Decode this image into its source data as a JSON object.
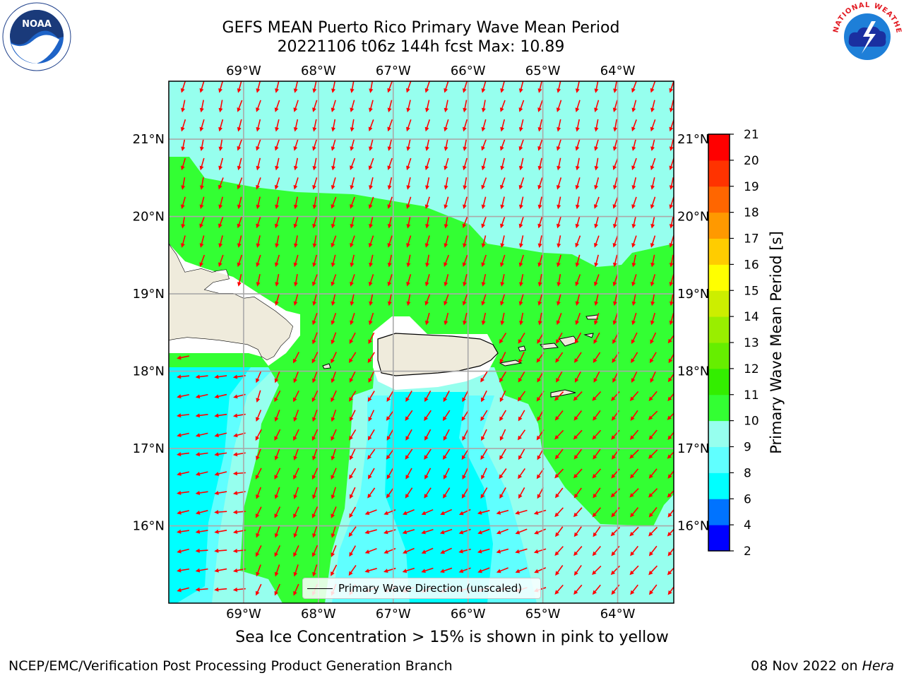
{
  "title": {
    "line1": "GEFS MEAN Puerto Rico Primary Wave Mean Period",
    "line2": "20221106 t06z 144h fcst   Max: 10.89"
  },
  "map": {
    "lon_labels": [
      "69°W",
      "68°W",
      "67°W",
      "66°W",
      "65°W",
      "64°W"
    ],
    "lat_labels": [
      "21°N",
      "20°N",
      "19°N",
      "18°N",
      "17°N",
      "16°N"
    ],
    "lon_values": [
      -69,
      -68,
      -67,
      -66,
      -65,
      -64
    ],
    "lat_values": [
      21,
      20,
      19,
      18,
      17,
      16
    ],
    "lon_range": [
      -70.0,
      -63.25
    ],
    "lat_range": [
      15.0,
      21.75
    ],
    "land_color": "#efebdc",
    "arrow_color": "#ff0000"
  },
  "legend": {
    "label": "Primary Wave Direction (unscaled)"
  },
  "colorbar": {
    "title": "Primary Wave Mean Period [s]",
    "ticks": [
      "2",
      "4",
      "6",
      "8",
      "9",
      "10",
      "11",
      "12",
      "13",
      "14",
      "15",
      "16",
      "17",
      "18",
      "19",
      "20",
      "21"
    ],
    "colors": [
      "#0000ff",
      "#0073ff",
      "#00ffff",
      "#60ffff",
      "#96ffee",
      "#33ff33",
      "#33ee00",
      "#66ee00",
      "#99ee00",
      "#ccee00",
      "#ffff00",
      "#ffcc00",
      "#ff9900",
      "#ff6600",
      "#ff3300",
      "#ff0000"
    ]
  },
  "footnote": "Sea Ice Concentration > 15% is shown in pink to yellow",
  "footer": {
    "left": "NCEP/EMC/Verification Post Processing Product Generation Branch",
    "date": "08 Nov 2022 on ",
    "host": "Hera"
  },
  "logos": {
    "noaa": "NOAA",
    "nws": "NATIONAL WEATHER SERVICE"
  }
}
